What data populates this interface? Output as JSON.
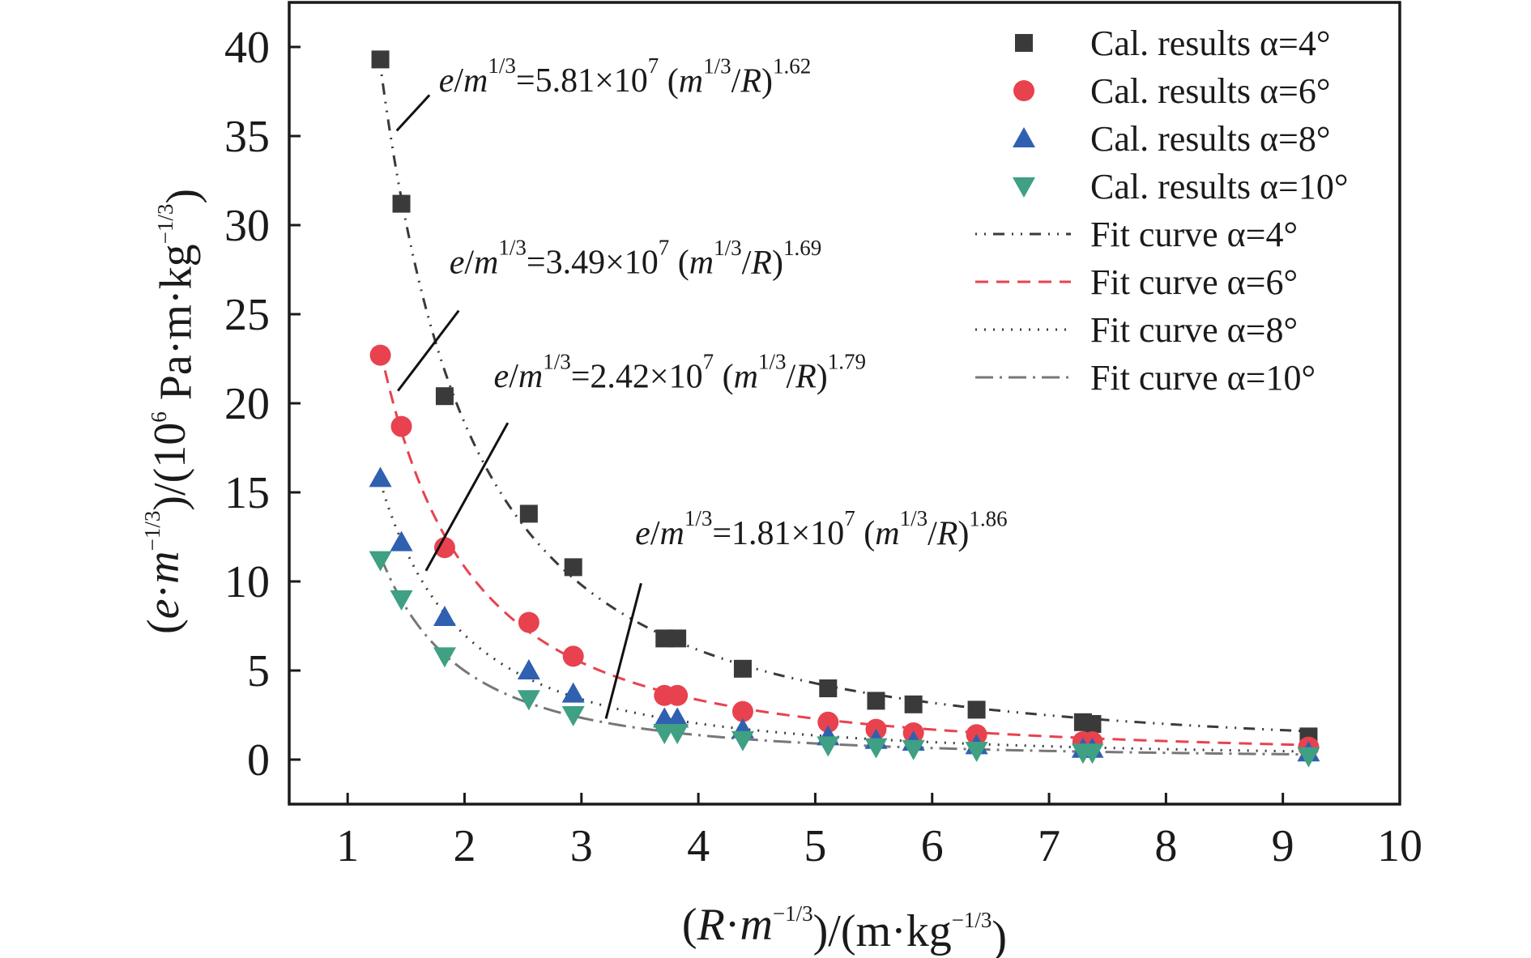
{
  "chart_data": {
    "type": "scatter",
    "xlabel": {
      "parts": [
        {
          "t": "(",
          "s": "n"
        },
        {
          "t": "R",
          "s": "i"
        },
        {
          "t": "·",
          "s": "n"
        },
        {
          "t": "m",
          "s": "i"
        },
        {
          "t": "−1/3",
          "s": "sup"
        },
        {
          "t": ")/(m·kg",
          "s": "n"
        },
        {
          "t": "−1/3",
          "s": "sup"
        },
        {
          "t": ")",
          "s": "n"
        }
      ]
    },
    "ylabel": {
      "parts": [
        {
          "t": "(",
          "s": "n"
        },
        {
          "t": "e",
          "s": "i"
        },
        {
          "t": "·",
          "s": "n"
        },
        {
          "t": "m",
          "s": "i"
        },
        {
          "t": "−1/3",
          "s": "sup"
        },
        {
          "t": ")/(10",
          "s": "n"
        },
        {
          "t": "6",
          "s": "sup"
        },
        {
          "t": " Pa·m·kg",
          "s": "n"
        },
        {
          "t": "−1/3",
          "s": "sup"
        },
        {
          "t": ")",
          "s": "n"
        }
      ]
    },
    "xlim": [
      0.5,
      10
    ],
    "ylim": [
      -2.5,
      42.5
    ],
    "xticks": [
      1,
      2,
      3,
      4,
      5,
      6,
      7,
      8,
      9,
      10
    ],
    "yticks": [
      0,
      5,
      10,
      15,
      20,
      25,
      30,
      35,
      40
    ],
    "grid": false,
    "legend_position": "top-right",
    "series": [
      {
        "name": "Cal. results α=4°",
        "marker": "square",
        "color": "#3a3a3a",
        "x": [
          1.28,
          1.46,
          1.83,
          2.55,
          2.93,
          3.71,
          3.82,
          4.38,
          5.11,
          5.52,
          5.84,
          6.38,
          7.29,
          7.37,
          9.22
        ],
        "y": [
          39.3,
          31.2,
          20.4,
          13.8,
          10.8,
          6.8,
          6.8,
          5.1,
          4.0,
          3.3,
          3.1,
          2.8,
          2.1,
          2.0,
          1.3
        ]
      },
      {
        "name": "Cal. results α=6°",
        "marker": "circle",
        "color": "#e8424f",
        "x": [
          1.28,
          1.46,
          1.83,
          2.55,
          2.93,
          3.71,
          3.82,
          4.38,
          5.11,
          5.52,
          5.84,
          6.38,
          7.29,
          7.37,
          9.22
        ],
        "y": [
          22.7,
          18.7,
          11.9,
          7.7,
          5.8,
          3.6,
          3.6,
          2.7,
          2.1,
          1.7,
          1.5,
          1.4,
          1.0,
          1.0,
          0.7
        ]
      },
      {
        "name": "Cal. results α=8°",
        "marker": "triangle-up",
        "color": "#3060b0",
        "x": [
          1.28,
          1.46,
          1.83,
          2.55,
          2.93,
          3.71,
          3.82,
          4.38,
          5.11,
          5.52,
          5.84,
          6.38,
          7.29,
          7.37,
          9.22
        ],
        "y": [
          15.8,
          12.2,
          8.0,
          5.0,
          3.7,
          2.3,
          2.3,
          1.7,
          1.3,
          1.1,
          1.0,
          0.8,
          0.6,
          0.6,
          0.4
        ]
      },
      {
        "name": "Cal. results α=10°",
        "marker": "triangle-down",
        "color": "#3fa083",
        "x": [
          1.28,
          1.46,
          1.83,
          2.55,
          2.93,
          3.71,
          3.82,
          4.38,
          5.11,
          5.52,
          5.84,
          6.38,
          7.29,
          7.37,
          9.22
        ],
        "y": [
          11.2,
          9.0,
          5.8,
          3.4,
          2.5,
          1.5,
          1.5,
          1.1,
          0.8,
          0.7,
          0.6,
          0.5,
          0.4,
          0.4,
          0.2
        ]
      }
    ],
    "fits": [
      {
        "name": "Fit curve α=4°",
        "a": 58.1,
        "b": 1.62,
        "color": "#3a3a3a",
        "dash": "2 9 2 9 14 9"
      },
      {
        "name": "Fit curve α=6°",
        "a": 34.9,
        "b": 1.69,
        "color": "#e8424f",
        "dash": "16 10"
      },
      {
        "name": "Fit curve α=8°",
        "a": 24.2,
        "b": 1.79,
        "color": "#3a3a3a",
        "dash": "2 9"
      },
      {
        "name": "Fit curve α=10°",
        "a": 18.1,
        "b": 1.86,
        "color": "#777777",
        "dash": "22 8 3 8"
      }
    ],
    "annotations": [
      {
        "prefix": "=5.81×10",
        "exp": "7",
        "coef": "1.62",
        "x": 1.78,
        "y": 37.5,
        "line": [
          [
            1.42,
            35.3
          ],
          [
            1.7,
            37.3
          ]
        ]
      },
      {
        "prefix": "=3.49×10",
        "exp": "7",
        "coef": "1.69",
        "x": 1.87,
        "y": 27.3,
        "line": [
          [
            1.43,
            20.7
          ],
          [
            1.95,
            25.2
          ]
        ]
      },
      {
        "prefix": "=2.42×10",
        "exp": "7",
        "coef": "1.79",
        "x": 2.25,
        "y": 20.9,
        "line": [
          [
            1.67,
            10.6
          ],
          [
            2.37,
            18.9
          ]
        ]
      },
      {
        "prefix": "=1.81×10",
        "exp": "7",
        "coef": "1.86",
        "x": 3.46,
        "y": 12.1,
        "line": [
          [
            3.21,
            2.3
          ],
          [
            3.51,
            9.9
          ]
        ]
      }
    ],
    "annotation_parts": {
      "e": "e",
      "slash": "/",
      "m": "m",
      "one_third": "1/3",
      "open": " (",
      "over_r": "/",
      "r": "R",
      "close": ")"
    }
  }
}
